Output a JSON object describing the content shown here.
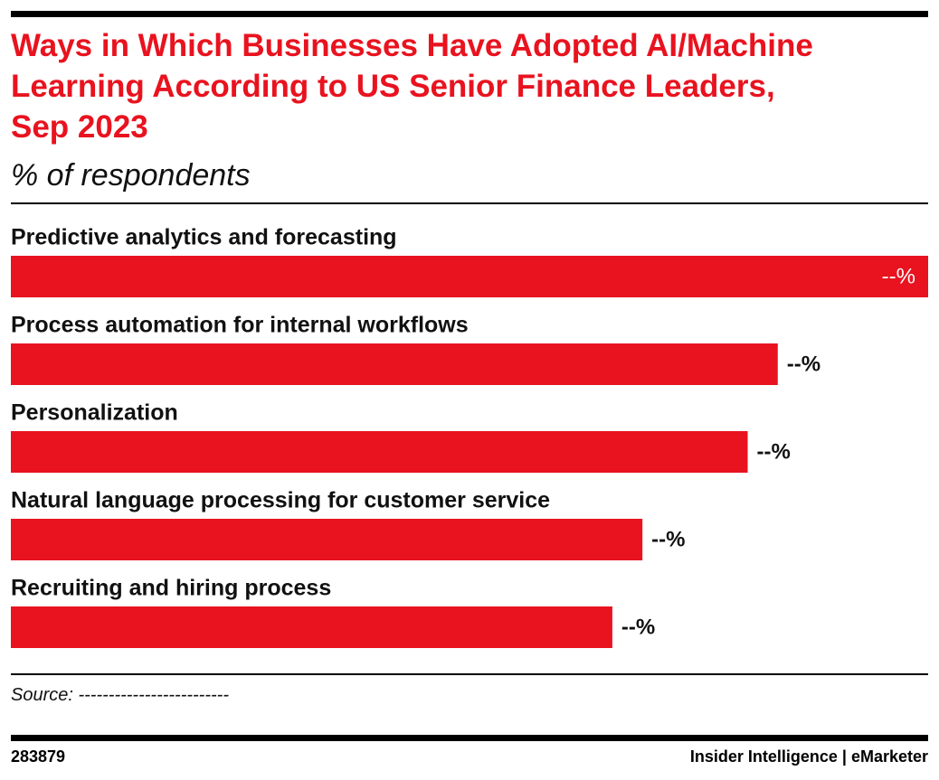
{
  "chart_data": {
    "type": "bar",
    "title": "Ways in Which Businesses Have Adopted AI/Machine Learning According to US Senior Finance Leaders, Sep 2023",
    "subtitle": "% of respondents",
    "categories": [
      "Predictive analytics and forecasting",
      "Process automation for internal workflows",
      "Personalization",
      "Natural language processing for customer service",
      "Recruiting and hiring process"
    ],
    "values": [
      61,
      51,
      49,
      42,
      40
    ],
    "value_labels": [
      "--%",
      "--%",
      "--%",
      "--%",
      "--%"
    ],
    "color": "#e8131f",
    "source": "Source: -------------------------",
    "chart_id": "283879",
    "brand": "Insider Intelligence | eMarketer"
  }
}
